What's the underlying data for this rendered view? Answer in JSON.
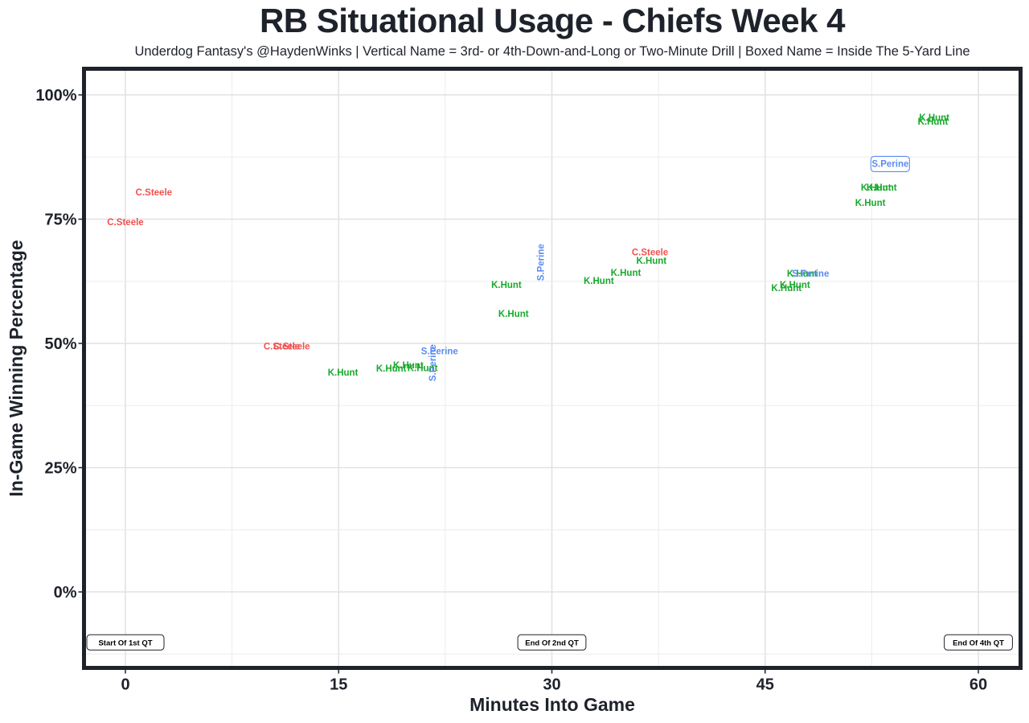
{
  "chart_data": {
    "type": "scatter",
    "title": "RB Situational Usage - Chiefs Week 4",
    "subtitle": "Underdog Fantasy's @HaydenWinks | Vertical Name = 3rd- or 4th-Down-and-Long or Two-Minute Drill | Boxed Name = Inside The 5-Yard Line",
    "xlabel": "Minutes Into Game",
    "ylabel": "In-Game Winning Percentage",
    "xlim": [
      -3,
      63
    ],
    "ylim": [
      -12.5,
      105
    ],
    "x_ticks": [
      0,
      15,
      30,
      45,
      60
    ],
    "x_tick_labels": [
      "0",
      "15",
      "30",
      "45",
      "60"
    ],
    "y_ticks": [
      0,
      25,
      50,
      75,
      100
    ],
    "y_tick_labels": [
      "0%",
      "25%",
      "50%",
      "75%",
      "100%"
    ],
    "x_minor_step": 7.5,
    "y_minor_step": 12.5,
    "grid": true,
    "player_colors": {
      "C.Steele": "#f0504f",
      "K.Hunt": "#19a92b",
      "S.Perine": "#5a8cf0"
    },
    "annotations": [
      {
        "x": 0,
        "y": -10,
        "label": "Start Of 1st QT"
      },
      {
        "x": 30,
        "y": -10,
        "label": "End Of 2nd QT"
      },
      {
        "x": 60,
        "y": -10,
        "label": "End Of 4th QT"
      }
    ],
    "points": [
      {
        "player": "C.Steele",
        "x": 2.0,
        "y": 80.4,
        "vertical": false,
        "boxed": false
      },
      {
        "player": "C.Steele",
        "x": 0.0,
        "y": 74.4,
        "vertical": false,
        "boxed": false
      },
      {
        "player": "C.Steele",
        "x": 11.0,
        "y": 49.4,
        "vertical": false,
        "boxed": false
      },
      {
        "player": "C.Steele",
        "x": 11.7,
        "y": 49.4,
        "vertical": false,
        "boxed": false
      },
      {
        "player": "K.Hunt",
        "x": 15.3,
        "y": 44.2,
        "vertical": false,
        "boxed": false
      },
      {
        "player": "K.Hunt",
        "x": 18.7,
        "y": 45.0,
        "vertical": false,
        "boxed": false
      },
      {
        "player": "K.Hunt",
        "x": 19.9,
        "y": 45.6,
        "vertical": false,
        "boxed": false
      },
      {
        "player": "K.Hunt",
        "x": 20.9,
        "y": 45.1,
        "vertical": false,
        "boxed": false
      },
      {
        "player": "S.Perine",
        "x": 22.1,
        "y": 48.5,
        "vertical": false,
        "boxed": false
      },
      {
        "player": "S.Perine",
        "x": 21.6,
        "y": 46.1,
        "vertical": true,
        "boxed": false
      },
      {
        "player": "K.Hunt",
        "x": 26.8,
        "y": 61.8,
        "vertical": false,
        "boxed": false
      },
      {
        "player": "K.Hunt",
        "x": 27.3,
        "y": 56.0,
        "vertical": false,
        "boxed": false
      },
      {
        "player": "S.Perine",
        "x": 29.2,
        "y": 66.3,
        "vertical": true,
        "boxed": false
      },
      {
        "player": "K.Hunt",
        "x": 33.3,
        "y": 62.6,
        "vertical": false,
        "boxed": false
      },
      {
        "player": "K.Hunt",
        "x": 35.2,
        "y": 64.2,
        "vertical": false,
        "boxed": false
      },
      {
        "player": "C.Steele",
        "x": 36.9,
        "y": 68.4,
        "vertical": false,
        "boxed": false
      },
      {
        "player": "K.Hunt",
        "x": 37.0,
        "y": 66.7,
        "vertical": false,
        "boxed": false
      },
      {
        "player": "K.Hunt",
        "x": 46.5,
        "y": 61.2,
        "vertical": false,
        "boxed": false
      },
      {
        "player": "K.Hunt",
        "x": 47.1,
        "y": 61.8,
        "vertical": false,
        "boxed": false
      },
      {
        "player": "K.Hunt",
        "x": 47.6,
        "y": 64.1,
        "vertical": false,
        "boxed": false
      },
      {
        "player": "S.Perine",
        "x": 48.2,
        "y": 64.1,
        "vertical": false,
        "boxed": false
      },
      {
        "player": "K.Hunt",
        "x": 52.4,
        "y": 78.3,
        "vertical": false,
        "boxed": false
      },
      {
        "player": "K.Hunt",
        "x": 52.8,
        "y": 81.4,
        "vertical": false,
        "boxed": false
      },
      {
        "player": "K.Hunt",
        "x": 53.2,
        "y": 81.4,
        "vertical": false,
        "boxed": false
      },
      {
        "player": "S.Perine",
        "x": 53.8,
        "y": 86.1,
        "vertical": false,
        "boxed": true
      },
      {
        "player": "K.Hunt",
        "x": 56.8,
        "y": 94.7,
        "vertical": false,
        "boxed": false
      },
      {
        "player": "K.Hunt",
        "x": 56.9,
        "y": 95.5,
        "vertical": false,
        "boxed": false
      }
    ]
  }
}
